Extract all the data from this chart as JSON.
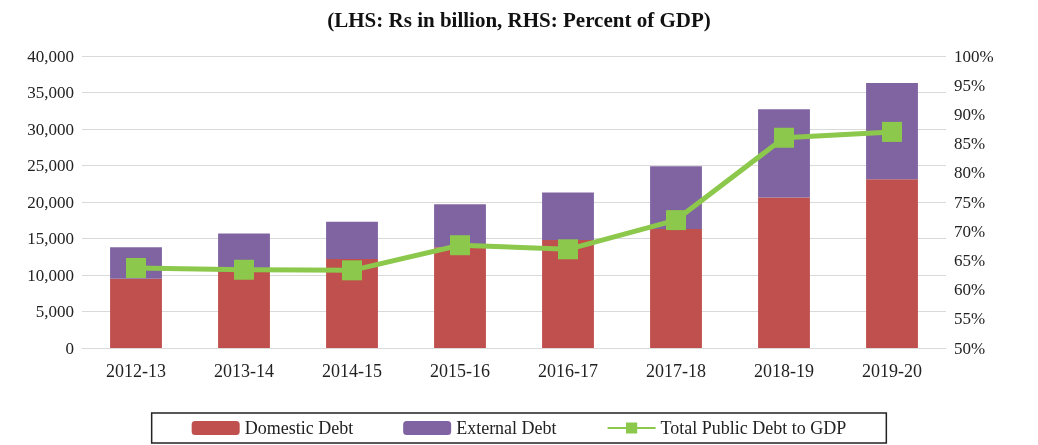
{
  "chart_data": {
    "type": "bar",
    "title": "(LHS: Rs in billion, RHS: Percent of GDP)",
    "categories": [
      "2012-13",
      "2013-14",
      "2014-15",
      "2015-16",
      "2016-17",
      "2017-18",
      "2018-19",
      "2019-20"
    ],
    "stacked": true,
    "series": [
      {
        "name": "Domestic Debt",
        "color": "#c0504d",
        "values": [
          9500,
          10400,
          12200,
          13800,
          14800,
          16300,
          20600,
          23100
        ]
      },
      {
        "name": "External Debt",
        "color": "#8064a2",
        "values": [
          4300,
          5300,
          5100,
          5900,
          6500,
          8600,
          12100,
          13200
        ]
      },
      {
        "name": "Total Public Debt to GDP",
        "type": "line",
        "axis": "y2",
        "color": "#8cc84b",
        "marker": "square",
        "values": [
          63.7,
          63.4,
          63.3,
          67.6,
          66.9,
          71.9,
          86.0,
          87.0
        ]
      }
    ],
    "ylim": [
      0,
      40000
    ],
    "yticks": [
      0,
      {
        "value": 5000,
        "label": "5,000"
      },
      {
        "value": 10000,
        "label": "10,000"
      },
      {
        "value": 15000,
        "label": "15,000"
      },
      {
        "value": 20000,
        "label": "20,000"
      },
      {
        "value": 25000,
        "label": "25,000"
      },
      {
        "value": 30000,
        "label": "30,000"
      },
      {
        "value": 35000,
        "label": "35,000"
      },
      {
        "value": 40000,
        "label": "40,000"
      }
    ],
    "y2lim": [
      50,
      100
    ],
    "y2ticks": [
      {
        "value": 50,
        "label": "50%"
      },
      {
        "value": 55,
        "label": "55%"
      },
      {
        "value": 60,
        "label": "60%"
      },
      {
        "value": 65,
        "label": "65%"
      },
      {
        "value": 70,
        "label": "70%"
      },
      {
        "value": 75,
        "label": "75%"
      },
      {
        "value": 80,
        "label": "80%"
      },
      {
        "value": 85,
        "label": "85%"
      },
      {
        "value": 90,
        "label": "90%"
      },
      {
        "value": 95,
        "label": "95%"
      },
      {
        "value": 100,
        "label": "100%"
      }
    ],
    "grid": "y",
    "legend": "bottom"
  }
}
